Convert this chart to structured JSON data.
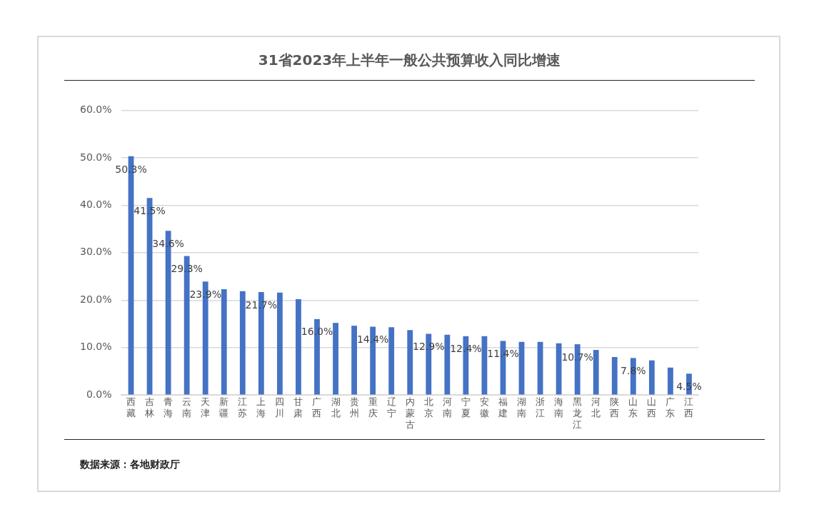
{
  "chart_data": {
    "type": "bar",
    "title": "31省2023年上半年一般公共预算收入同比增速",
    "categories": [
      "西藏",
      "吉林",
      "青海",
      "云南",
      "天津",
      "新疆",
      "江苏",
      "上海",
      "四川",
      "甘肃",
      "广西",
      "湖北",
      "贵州",
      "重庆",
      "辽宁",
      "内蒙古",
      "北京",
      "河南",
      "宁夏",
      "安徽",
      "福建",
      "湖南",
      "浙江",
      "海南",
      "黑龙江",
      "河北",
      "陕西",
      "山东",
      "山西",
      "广东",
      "江西"
    ],
    "values": [
      50.3,
      41.5,
      34.6,
      29.3,
      23.9,
      22.3,
      21.9,
      21.7,
      21.6,
      20.2,
      16.0,
      15.2,
      14.6,
      14.4,
      14.3,
      13.7,
      12.9,
      12.7,
      12.4,
      12.4,
      11.4,
      11.2,
      11.2,
      10.9,
      10.7,
      9.5,
      8.0,
      7.8,
      7.3,
      5.8,
      4.5
    ],
    "value_labels": [
      "50.3%",
      "41.5%",
      "34.6%",
      "29.3%",
      "23.9%",
      null,
      null,
      "21.7%",
      null,
      null,
      "16.0%",
      null,
      null,
      "14.4%",
      null,
      null,
      "12.9%",
      null,
      "12.4%",
      null,
      "11.4%",
      null,
      null,
      null,
      "10.7%",
      null,
      null,
      "7.8%",
      null,
      null,
      "4.5%"
    ],
    "color": "#4472c4",
    "ylim": [
      0,
      60
    ],
    "yticks": [
      {
        "value": 0,
        "label": "0.0%"
      },
      {
        "value": 10,
        "label": "10.0%"
      },
      {
        "value": 20,
        "label": "20.0%"
      },
      {
        "value": 30,
        "label": "30.0%"
      },
      {
        "value": 40,
        "label": "40.0%"
      },
      {
        "value": 50,
        "label": "50.0%"
      },
      {
        "value": 60,
        "label": "60.0%"
      }
    ],
    "grid": "y",
    "legend": false,
    "annotations": [
      "数据来源：各地财政厅"
    ]
  }
}
